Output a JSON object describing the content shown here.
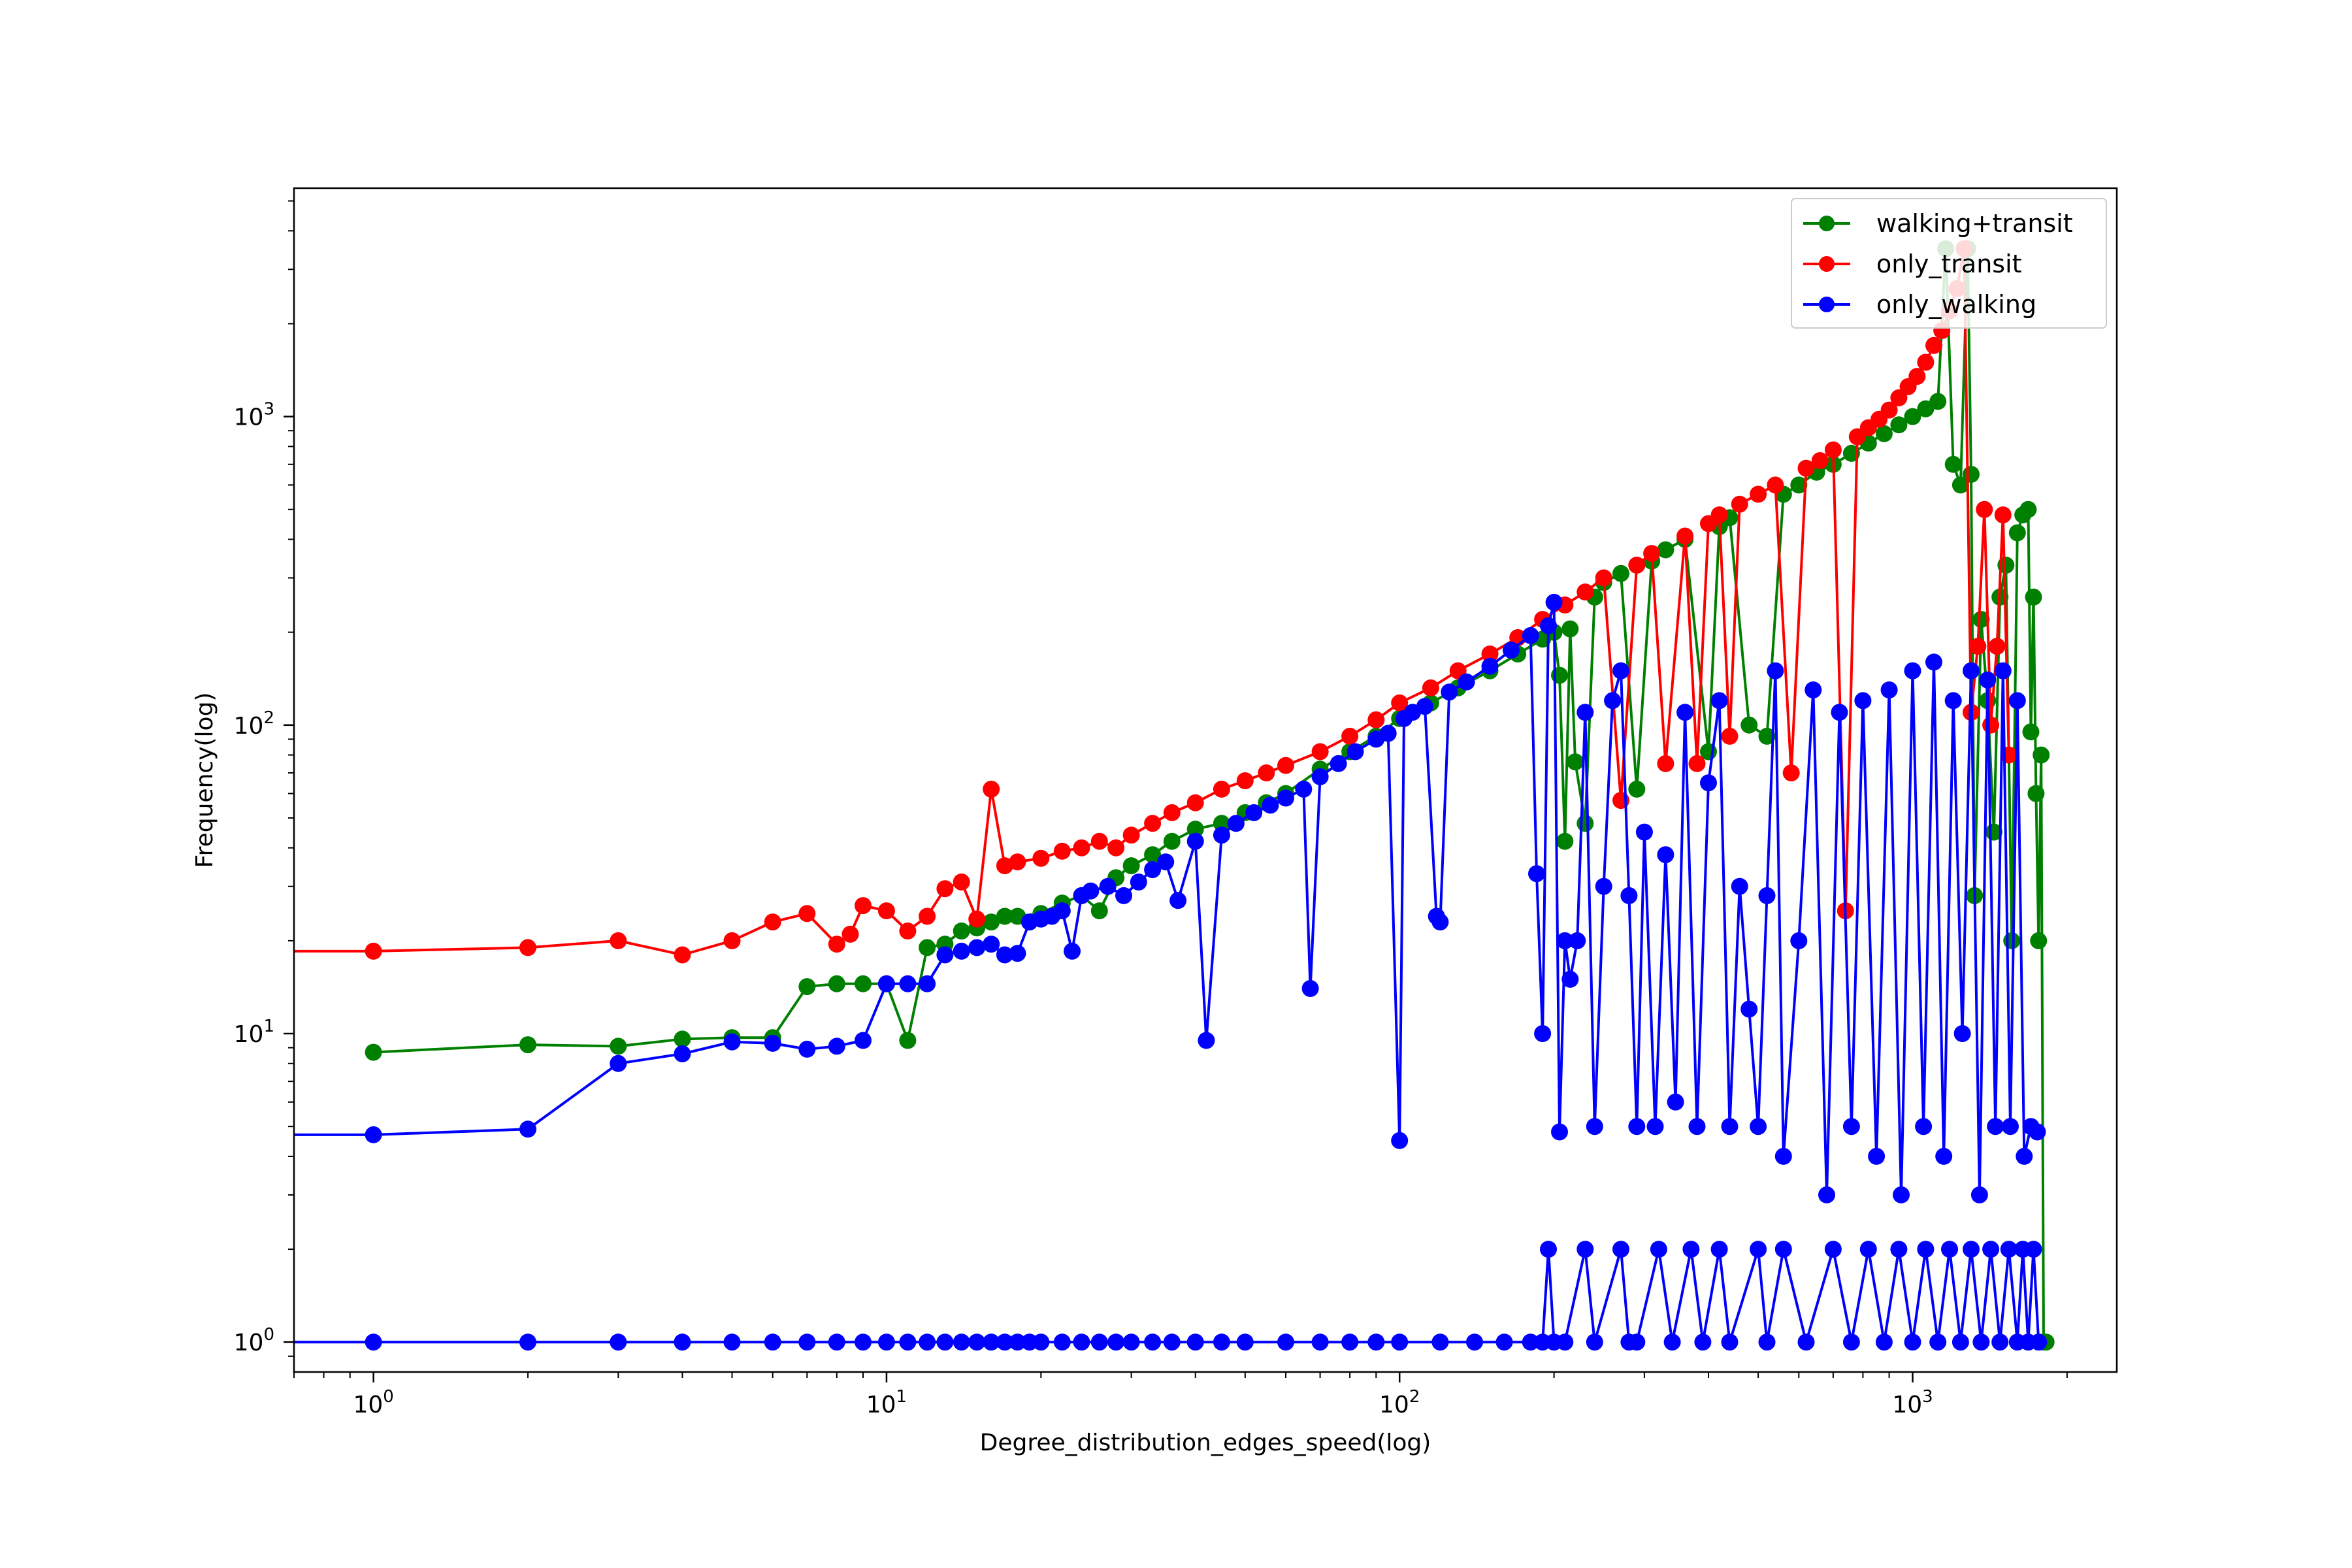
{
  "chart_data": {
    "type": "line",
    "title": "",
    "xlabel": "Degree_distribution_edges_speed(log)",
    "ylabel": "Frequency(log)",
    "xscale": "log",
    "yscale": "log",
    "xlim": [
      0.7,
      2500
    ],
    "ylim": [
      0.8,
      5500
    ],
    "xticks": [
      {
        "value": 1,
        "base": "10",
        "exp": "0"
      },
      {
        "value": 10,
        "base": "10",
        "exp": "1"
      },
      {
        "value": 100,
        "base": "10",
        "exp": "2"
      },
      {
        "value": 1000,
        "base": "10",
        "exp": "3"
      }
    ],
    "yticks": [
      {
        "value": 1,
        "base": "10",
        "exp": "0"
      },
      {
        "value": 10,
        "base": "10",
        "exp": "1"
      },
      {
        "value": 100,
        "base": "10",
        "exp": "2"
      },
      {
        "value": 1000,
        "base": "10",
        "exp": "3"
      }
    ],
    "grid": false,
    "legend_position": "top-right",
    "series": [
      {
        "name": "walking+transit",
        "color": "#008000",
        "x": [
          1,
          2,
          3,
          4,
          5,
          6,
          7,
          8,
          9,
          10,
          11,
          12,
          13,
          14,
          15,
          16,
          17,
          18,
          20,
          22,
          24,
          26,
          28,
          30,
          33,
          36,
          40,
          45,
          50,
          55,
          60,
          70,
          80,
          90,
          100,
          115,
          130,
          150,
          170,
          190,
          200,
          205,
          210,
          215,
          220,
          230,
          240,
          250,
          270,
          290,
          310,
          330,
          360,
          400,
          420,
          440,
          480,
          520,
          560,
          600,
          650,
          700,
          760,
          820,
          880,
          940,
          1000,
          1060,
          1120,
          1160,
          1200,
          1240,
          1280,
          1300,
          1320,
          1360,
          1400,
          1440,
          1480,
          1520,
          1560,
          1600,
          1640,
          1680,
          1700,
          1720,
          1740,
          1760,
          1780,
          1800,
          1820
        ],
        "y": [
          8.7,
          9.2,
          9.1,
          9.6,
          9.7,
          9.7,
          14.2,
          14.5,
          14.5,
          14.5,
          9.5,
          19,
          19.5,
          21.5,
          22,
          23,
          24,
          24,
          24.5,
          26.5,
          28,
          25,
          32,
          35,
          38,
          42,
          46,
          48,
          52,
          56,
          60,
          72,
          82,
          92,
          105,
          118,
          132,
          150,
          170,
          190,
          200,
          145,
          42,
          205,
          76,
          48,
          260,
          290,
          310,
          62,
          340,
          370,
          400,
          82,
          440,
          470,
          100,
          92,
          560,
          600,
          660,
          700,
          760,
          820,
          880,
          940,
          1000,
          1060,
          1120,
          3500,
          700,
          600,
          3500,
          650,
          28,
          220,
          120,
          45,
          260,
          330,
          20,
          420,
          480,
          500,
          95,
          260,
          60,
          20,
          80,
          1,
          1
        ]
      },
      {
        "name": "only_transit",
        "color": "#ff0000",
        "x": [
          0.5,
          1,
          2,
          3,
          4,
          5,
          6,
          7,
          8,
          8.5,
          9,
          10,
          11,
          12,
          13,
          14,
          15,
          16,
          17,
          18,
          20,
          22,
          24,
          26,
          28,
          30,
          33,
          36,
          40,
          45,
          50,
          55,
          60,
          70,
          80,
          90,
          100,
          115,
          130,
          150,
          170,
          190,
          210,
          230,
          250,
          270,
          290,
          310,
          330,
          360,
          380,
          400,
          420,
          440,
          460,
          500,
          540,
          580,
          620,
          660,
          700,
          740,
          780,
          820,
          860,
          900,
          940,
          980,
          1020,
          1060,
          1100,
          1140,
          1180,
          1220,
          1260,
          1300,
          1340,
          1380,
          1420,
          1460,
          1500,
          1540
        ],
        "y": [
          18.5,
          18.5,
          19,
          20,
          18,
          20,
          23,
          24.5,
          19.5,
          21,
          26,
          25,
          21.5,
          24,
          29.5,
          31,
          23.5,
          62,
          35,
          36,
          37,
          39,
          40,
          42,
          40,
          44,
          48,
          52,
          56,
          62,
          66,
          70,
          74,
          82,
          92,
          104,
          118,
          132,
          150,
          170,
          192,
          220,
          245,
          270,
          300,
          57,
          330,
          360,
          75,
          410,
          75,
          450,
          480,
          92,
          520,
          560,
          600,
          70,
          680,
          720,
          780,
          25,
          860,
          920,
          980,
          1050,
          1150,
          1250,
          1350,
          1500,
          1700,
          1900,
          2200,
          2600,
          3500,
          110,
          180,
          500,
          100,
          180,
          480,
          80
        ]
      },
      {
        "name": "only_walking",
        "color": "#0000ff",
        "x": [
          0.5,
          1,
          2,
          3,
          4,
          5,
          6,
          7,
          8,
          9,
          10,
          11,
          12,
          13,
          14,
          15,
          16,
          17,
          18,
          19,
          20,
          21,
          22,
          23,
          24,
          25,
          27,
          29,
          31,
          33,
          35,
          37,
          40,
          42,
          45,
          48,
          52,
          56,
          60,
          65,
          67,
          70,
          76,
          82,
          90,
          95,
          100,
          102,
          106,
          112,
          118,
          120,
          125,
          135,
          150,
          165,
          180,
          185,
          190,
          195,
          200,
          205,
          210,
          215,
          222,
          230,
          240,
          250,
          260,
          270,
          280,
          290,
          300,
          315,
          330,
          345,
          360,
          380,
          400,
          420,
          440,
          460,
          480,
          500,
          520,
          540,
          560,
          600,
          640,
          680,
          720,
          760,
          800,
          850,
          900,
          950,
          1000,
          1050,
          1100,
          1150,
          1200,
          1250,
          1300,
          1350,
          1400,
          1450,
          1500,
          1550,
          1600,
          1650,
          1700,
          1750
        ],
        "y": [
          4.7,
          4.7,
          4.9,
          8,
          8.6,
          9.4,
          9.3,
          8.9,
          9.1,
          9.5,
          14.5,
          14.5,
          14.5,
          18,
          18.5,
          19,
          19.5,
          18,
          18.2,
          23,
          23.5,
          24,
          25,
          18.5,
          28,
          29,
          30,
          28,
          31,
          34,
          36,
          27,
          42,
          9.5,
          44,
          48,
          52,
          55,
          58,
          62,
          14,
          68,
          75,
          82,
          90,
          94,
          4.5,
          105,
          110,
          115,
          24,
          23,
          128,
          138,
          155,
          175,
          195,
          33,
          10,
          210,
          250,
          4.8,
          20,
          15,
          20,
          110,
          5,
          30,
          120,
          150,
          28,
          5,
          45,
          5,
          38,
          6,
          110,
          5,
          65,
          120,
          5,
          30,
          12,
          5,
          28,
          150,
          4,
          20,
          130,
          3,
          110,
          5,
          120,
          4,
          130,
          3,
          150,
          5,
          160,
          4,
          120,
          10,
          150,
          3,
          140,
          5,
          150,
          5,
          120,
          4,
          5,
          4.8
        ]
      },
      {
        "name": "",
        "color": "#0000ff",
        "x": [
          0.5,
          1,
          2,
          3,
          4,
          5,
          6,
          7,
          8,
          9,
          10,
          11,
          12,
          13,
          14,
          15,
          16,
          17,
          18,
          19,
          20,
          22,
          24,
          26,
          28,
          30,
          33,
          36,
          40,
          45,
          50,
          60,
          70,
          80,
          90,
          100,
          120,
          140,
          160,
          180,
          190,
          195,
          200,
          210,
          230,
          240,
          270,
          280,
          290,
          320,
          340,
          370,
          390,
          420,
          440,
          500,
          520,
          560,
          620,
          700,
          760,
          820,
          880,
          940,
          1000,
          1060,
          1120,
          1180,
          1240,
          1300,
          1360,
          1420,
          1480,
          1540,
          1600,
          1640,
          1680,
          1720,
          1760
        ],
        "y": [
          1,
          1,
          1,
          1,
          1,
          1,
          1,
          1,
          1,
          1,
          1,
          1,
          1,
          1,
          1,
          1,
          1,
          1,
          1,
          1,
          1,
          1,
          1,
          1,
          1,
          1,
          1,
          1,
          1,
          1,
          1,
          1,
          1,
          1,
          1,
          1,
          1,
          1,
          1,
          1,
          1,
          2,
          1,
          1,
          2,
          1,
          2,
          1,
          1,
          2,
          1,
          2,
          1,
          2,
          1,
          2,
          1,
          2,
          1,
          2,
          1,
          2,
          1,
          2,
          1,
          2,
          1,
          2,
          1,
          2,
          1,
          2,
          1,
          2,
          1,
          2,
          1,
          2,
          1
        ]
      }
    ]
  }
}
